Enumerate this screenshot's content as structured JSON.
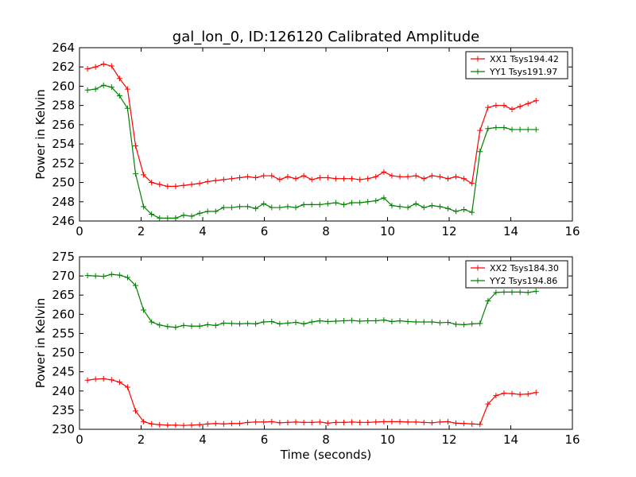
{
  "figure_title": "gal_lon_0, ID:126120 Calibrated Amplitude",
  "chart_data": [
    {
      "type": "line",
      "title": "gal_lon_0, ID:126120 Calibrated Amplitude",
      "xlabel": "",
      "ylabel": "Power in Kelvin",
      "xlim": [
        0,
        16
      ],
      "ylim": [
        246,
        264
      ],
      "xticks": [
        "0",
        "2",
        "4",
        "6",
        "8",
        "10",
        "12",
        "14",
        "16"
      ],
      "yticks": [
        "246",
        "248",
        "250",
        "252",
        "254",
        "256",
        "258",
        "260",
        "262",
        "264"
      ],
      "grid": false,
      "legend_position": "top-right",
      "x": [
        0.26,
        0.52,
        0.78,
        1.04,
        1.3,
        1.56,
        1.82,
        2.08,
        2.34,
        2.6,
        2.86,
        3.12,
        3.38,
        3.64,
        3.9,
        4.16,
        4.42,
        4.68,
        4.94,
        5.2,
        5.46,
        5.72,
        5.98,
        6.24,
        6.5,
        6.76,
        7.02,
        7.28,
        7.54,
        7.8,
        8.06,
        8.32,
        8.58,
        8.84,
        9.1,
        9.36,
        9.62,
        9.88,
        10.14,
        10.4,
        10.66,
        10.92,
        11.18,
        11.44,
        11.7,
        11.96,
        12.22,
        12.48,
        12.74,
        13.0,
        13.26,
        13.52,
        13.78,
        14.04,
        14.3,
        14.56,
        14.82
      ],
      "series": [
        {
          "name": "XX1 Tsys194.42",
          "color": "#ff0000",
          "values": [
            261.8,
            262.0,
            262.3,
            262.1,
            260.8,
            259.7,
            253.8,
            250.8,
            250.0,
            249.8,
            249.6,
            249.6,
            249.7,
            249.8,
            249.9,
            250.1,
            250.2,
            250.3,
            250.4,
            250.5,
            250.6,
            250.5,
            250.7,
            250.7,
            250.3,
            250.6,
            250.4,
            250.7,
            250.3,
            250.5,
            250.5,
            250.4,
            250.4,
            250.4,
            250.3,
            250.4,
            250.6,
            251.1,
            250.7,
            250.6,
            250.6,
            250.7,
            250.4,
            250.7,
            250.6,
            250.4,
            250.6,
            250.4,
            249.9,
            255.4,
            257.8,
            258.0,
            258.0,
            257.6,
            257.9,
            258.2,
            258.5
          ]
        },
        {
          "name": "YY1 Tsys191.97",
          "color": "#008000",
          "values": [
            259.6,
            259.7,
            260.1,
            259.9,
            259.0,
            257.7,
            250.9,
            247.5,
            246.7,
            246.3,
            246.3,
            246.3,
            246.6,
            246.5,
            246.8,
            247.0,
            247.0,
            247.4,
            247.4,
            247.5,
            247.5,
            247.3,
            247.8,
            247.4,
            247.4,
            247.5,
            247.4,
            247.7,
            247.7,
            247.7,
            247.8,
            247.9,
            247.7,
            247.9,
            247.9,
            248.0,
            248.1,
            248.4,
            247.6,
            247.5,
            247.4,
            247.8,
            247.4,
            247.6,
            247.5,
            247.3,
            247.0,
            247.2,
            246.9,
            253.2,
            255.6,
            255.7,
            255.7,
            255.5,
            255.5,
            255.5,
            255.5
          ]
        }
      ]
    },
    {
      "type": "line",
      "title": "",
      "xlabel": "Time (seconds)",
      "ylabel": "Power in Kelvin",
      "xlim": [
        0,
        16
      ],
      "ylim": [
        230,
        275
      ],
      "xticks": [
        "0",
        "2",
        "4",
        "6",
        "8",
        "10",
        "12",
        "14",
        "16"
      ],
      "yticks": [
        "230",
        "235",
        "240",
        "245",
        "250",
        "255",
        "260",
        "265",
        "270",
        "275"
      ],
      "grid": false,
      "legend_position": "top-right",
      "x": [
        0.26,
        0.52,
        0.78,
        1.04,
        1.3,
        1.56,
        1.82,
        2.08,
        2.34,
        2.6,
        2.86,
        3.12,
        3.38,
        3.64,
        3.9,
        4.16,
        4.42,
        4.68,
        4.94,
        5.2,
        5.46,
        5.72,
        5.98,
        6.24,
        6.5,
        6.76,
        7.02,
        7.28,
        7.54,
        7.8,
        8.06,
        8.32,
        8.58,
        8.84,
        9.1,
        9.36,
        9.62,
        9.88,
        10.14,
        10.4,
        10.66,
        10.92,
        11.18,
        11.44,
        11.7,
        11.96,
        12.22,
        12.48,
        12.74,
        13.0,
        13.26,
        13.52,
        13.78,
        14.04,
        14.3,
        14.56,
        14.82
      ],
      "series": [
        {
          "name": "XX2 Tsys184.30",
          "color": "#ff0000",
          "values": [
            242.8,
            243.1,
            243.2,
            242.9,
            242.3,
            241.0,
            234.8,
            232.0,
            231.4,
            231.2,
            231.1,
            231.1,
            231.0,
            231.1,
            231.2,
            231.4,
            231.5,
            231.4,
            231.5,
            231.5,
            231.8,
            231.9,
            231.9,
            232.0,
            231.7,
            231.8,
            231.9,
            231.8,
            231.8,
            231.9,
            231.6,
            231.8,
            231.8,
            231.9,
            231.8,
            231.8,
            231.9,
            232.0,
            232.0,
            232.0,
            231.9,
            231.9,
            231.8,
            231.7,
            231.9,
            232.0,
            231.6,
            231.5,
            231.4,
            231.3,
            236.6,
            238.8,
            239.4,
            239.3,
            239.1,
            239.2,
            239.6
          ]
        },
        {
          "name": "YY2 Tsys194.86",
          "color": "#008000",
          "values": [
            270.1,
            270.0,
            269.9,
            270.4,
            270.2,
            269.6,
            267.5,
            261.1,
            258.0,
            257.2,
            256.8,
            256.6,
            257.1,
            256.9,
            256.9,
            257.3,
            257.1,
            257.7,
            257.6,
            257.5,
            257.6,
            257.5,
            258.0,
            258.1,
            257.5,
            257.7,
            257.9,
            257.5,
            258.0,
            258.3,
            258.1,
            258.2,
            258.3,
            258.4,
            258.2,
            258.3,
            258.3,
            258.5,
            258.1,
            258.3,
            258.1,
            258.0,
            258.0,
            258.0,
            257.8,
            257.9,
            257.4,
            257.3,
            257.5,
            257.6,
            263.5,
            265.7,
            265.8,
            265.8,
            265.8,
            265.7,
            266.0
          ]
        }
      ]
    }
  ]
}
